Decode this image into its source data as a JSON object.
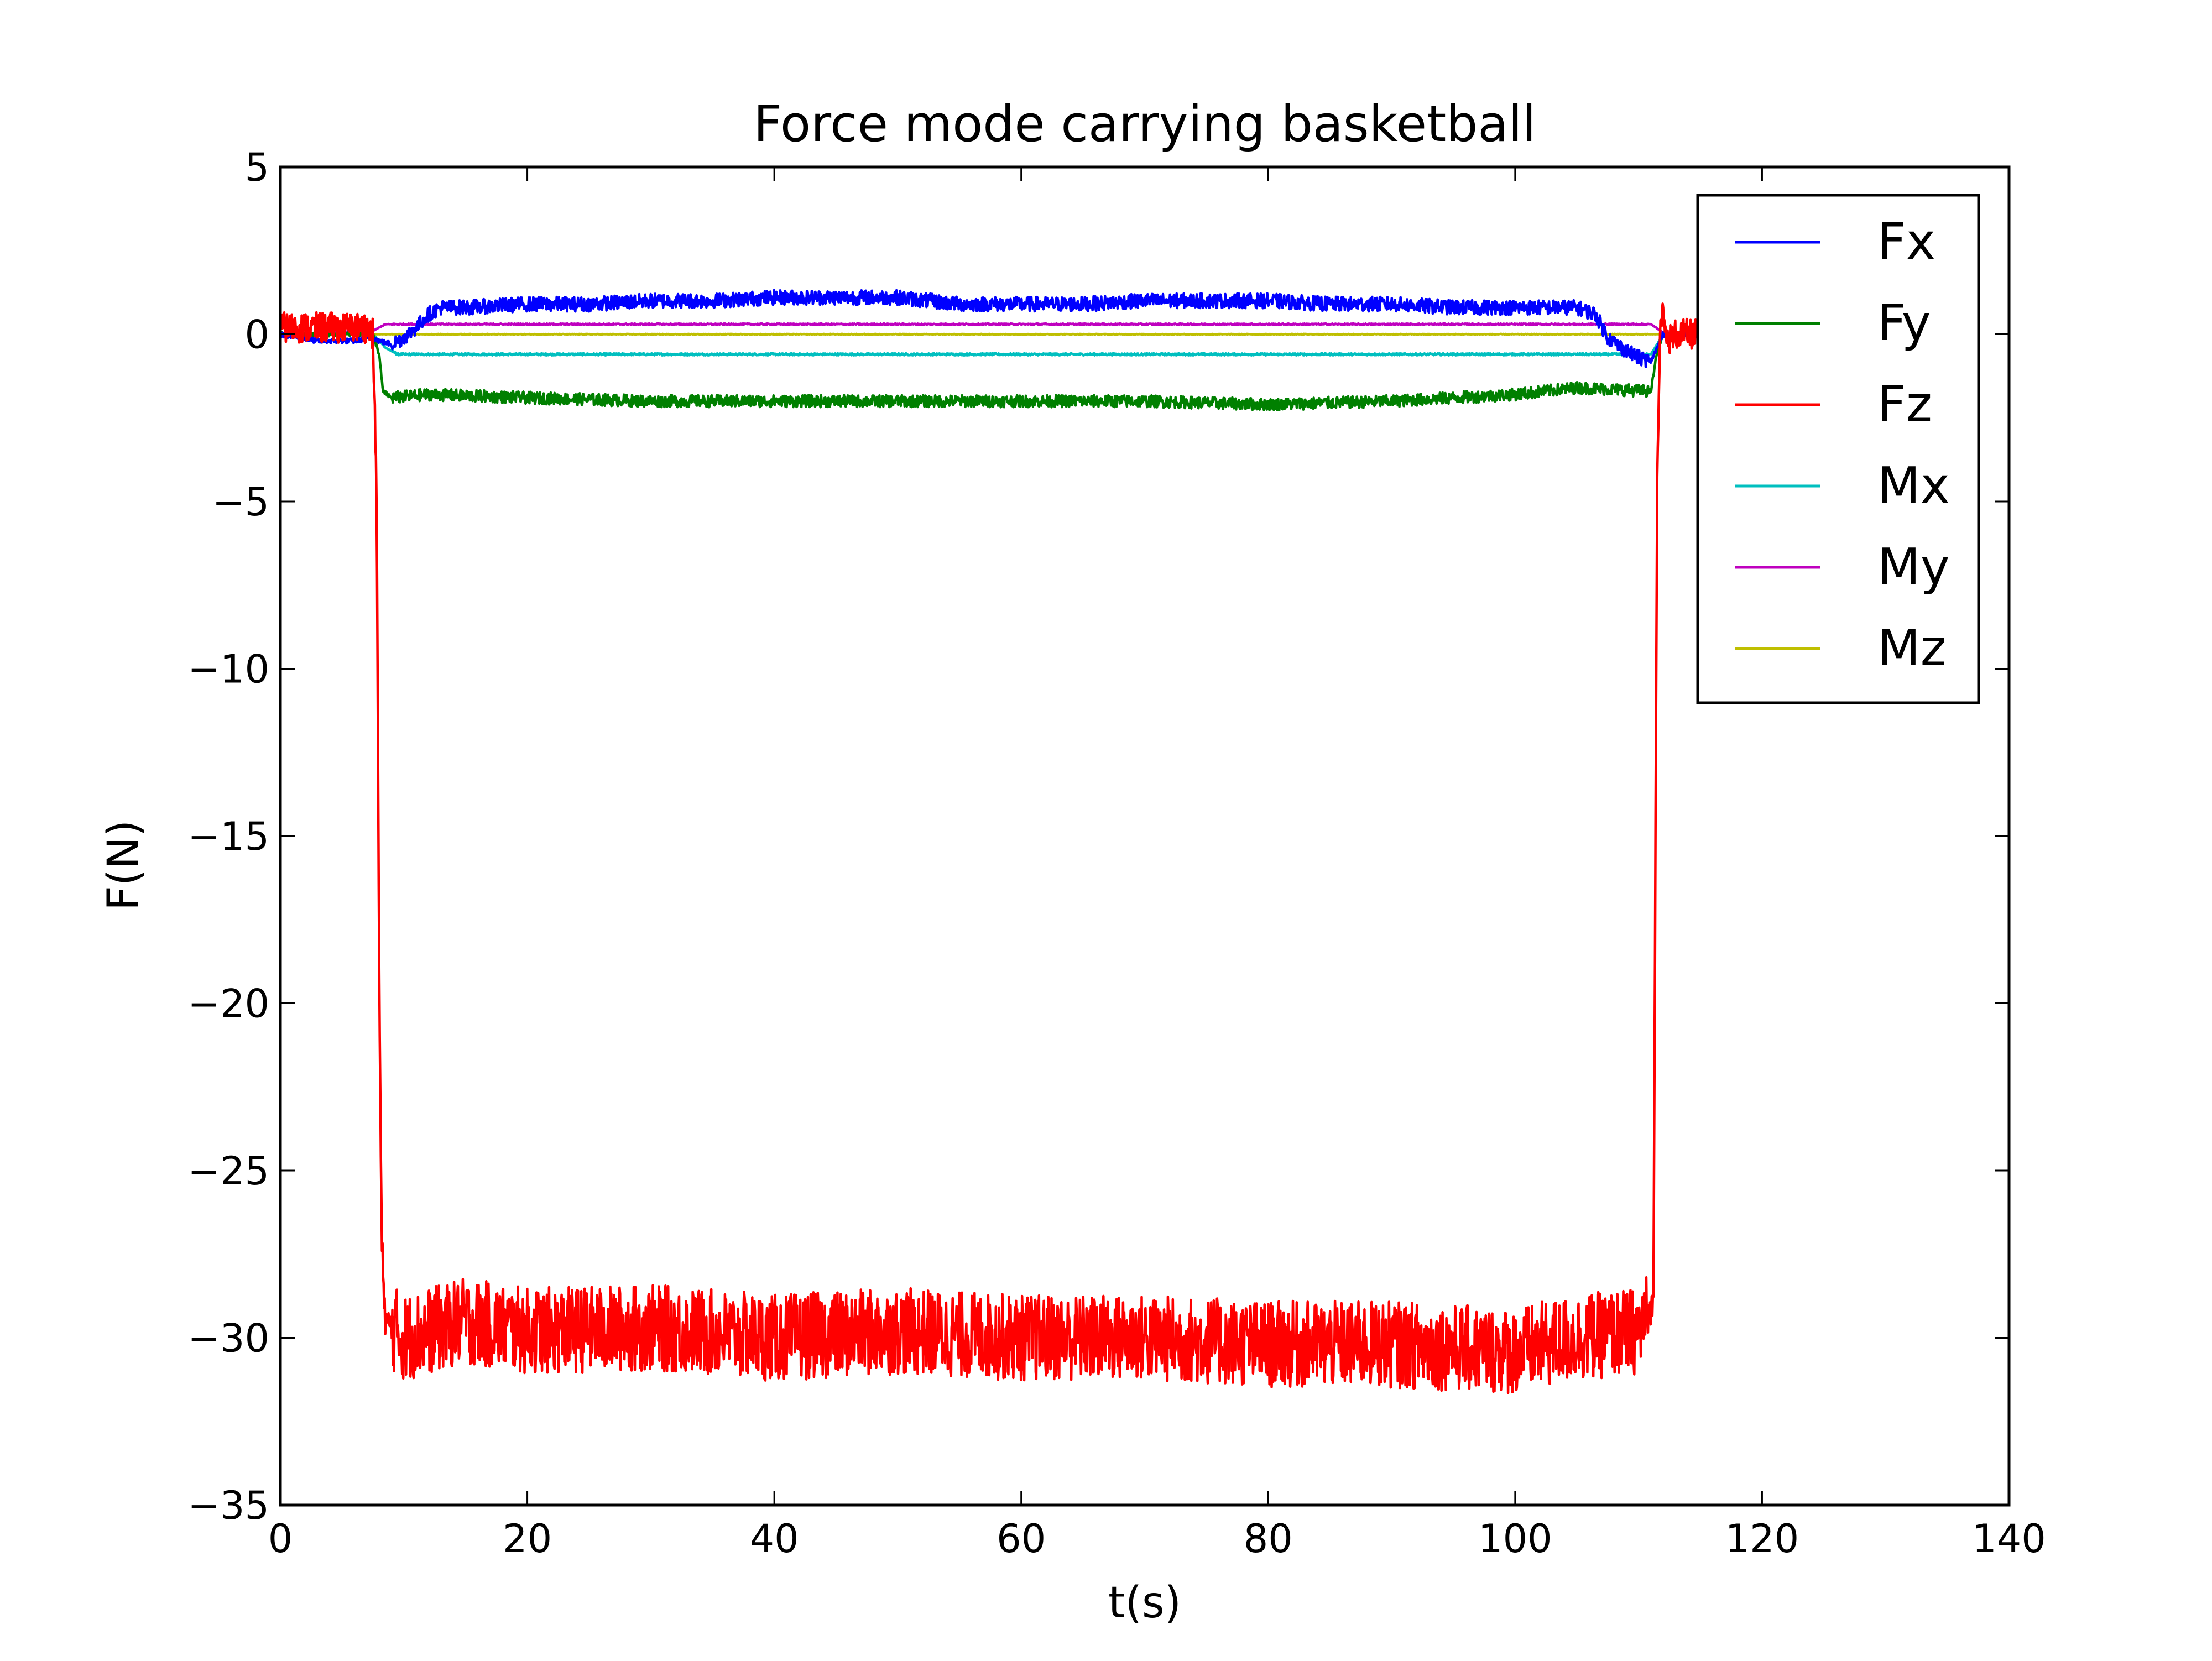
{
  "chart_data": {
    "type": "line",
    "title": "Force mode carrying basketball",
    "xlabel": "t(s)",
    "ylabel": "F(N)",
    "xlim": [
      0,
      140
    ],
    "ylim": [
      -35,
      5
    ],
    "xticks": [
      0,
      20,
      40,
      60,
      80,
      100,
      120,
      140
    ],
    "yticks": [
      5,
      0,
      -5,
      -10,
      -15,
      -20,
      -25,
      -30,
      -35
    ],
    "grid": false,
    "legend": "top-right",
    "noise_note": "",
    "series": [
      {
        "name": "Fx",
        "color": "#0000ff",
        "x": [
          0,
          3,
          6,
          7.5,
          8,
          9,
          10,
          11,
          12,
          13,
          15,
          20,
          25,
          30,
          35,
          40,
          45,
          50,
          55,
          60,
          65,
          70,
          75,
          80,
          85,
          90,
          95,
          100,
          105,
          106.5,
          107.5,
          109,
          110,
          111,
          111.5,
          112,
          113,
          115
        ],
        "y": [
          0.0,
          -0.2,
          -0.2,
          -0.1,
          -0.2,
          -0.3,
          -0.1,
          0.2,
          0.6,
          0.8,
          0.8,
          0.9,
          0.9,
          1.0,
          1.0,
          1.1,
          1.1,
          1.1,
          0.9,
          0.9,
          0.9,
          1.0,
          1.0,
          1.0,
          0.9,
          0.9,
          0.8,
          0.8,
          0.8,
          0.6,
          -0.1,
          -0.5,
          -0.7,
          -0.8,
          -0.4,
          0.0,
          0.0,
          0.0
        ],
        "amp": 0.22
      },
      {
        "name": "Fy",
        "color": "#008000",
        "x": [
          0,
          7.5,
          8,
          8.3,
          9,
          12,
          20,
          30,
          40,
          50,
          60,
          70,
          80,
          90,
          100,
          105,
          111,
          111.5,
          112,
          115
        ],
        "y": [
          0.0,
          0.0,
          -0.6,
          -1.7,
          -1.9,
          -1.8,
          -1.9,
          -2.0,
          -2.0,
          -2.0,
          -2.0,
          -2.0,
          -2.1,
          -2.0,
          -1.8,
          -1.6,
          -1.7,
          -0.5,
          0.0,
          0.0
        ],
        "amp": 0.18
      },
      {
        "name": "Fz",
        "color": "#ff0000",
        "x": [
          0,
          7,
          7.5,
          7.8,
          8.0,
          8.2,
          8.5,
          10,
          15,
          20,
          30,
          40,
          50,
          60,
          70,
          80,
          90,
          100,
          105,
          110,
          111.2,
          111.5,
          111.8,
          112.3,
          113,
          115
        ],
        "y": [
          0.2,
          0.2,
          0.0,
          -5.0,
          -19.0,
          -27.0,
          -29.5,
          -30.0,
          -29.5,
          -29.8,
          -29.7,
          -30.0,
          -29.8,
          -30.0,
          -30.0,
          -30.2,
          -30.2,
          -30.4,
          -30.0,
          -29.8,
          -29.0,
          -4.0,
          0.8,
          -0.2,
          0.0,
          0.0
        ],
        "amp": 1.3
      },
      {
        "name": "Mx",
        "color": "#00bfbf",
        "x": [
          0,
          7.5,
          8.5,
          9.5,
          20,
          40,
          60,
          80,
          100,
          110,
          111,
          112,
          115
        ],
        "y": [
          0.0,
          0.0,
          -0.4,
          -0.6,
          -0.6,
          -0.6,
          -0.6,
          -0.6,
          -0.6,
          -0.6,
          -0.6,
          0.0,
          0.0
        ],
        "amp": 0.03
      },
      {
        "name": "My",
        "color": "#bf00bf",
        "x": [
          0,
          7.5,
          8.5,
          20,
          60,
          100,
          111,
          112,
          115
        ],
        "y": [
          0.0,
          0.1,
          0.3,
          0.3,
          0.3,
          0.3,
          0.3,
          0.05,
          0.0
        ],
        "amp": 0.02
      },
      {
        "name": "Mz",
        "color": "#bfbf00",
        "x": [
          0,
          20,
          60,
          100,
          115
        ],
        "y": [
          0.0,
          0.0,
          0.0,
          0.0,
          0.0
        ],
        "amp": 0.01
      }
    ]
  }
}
